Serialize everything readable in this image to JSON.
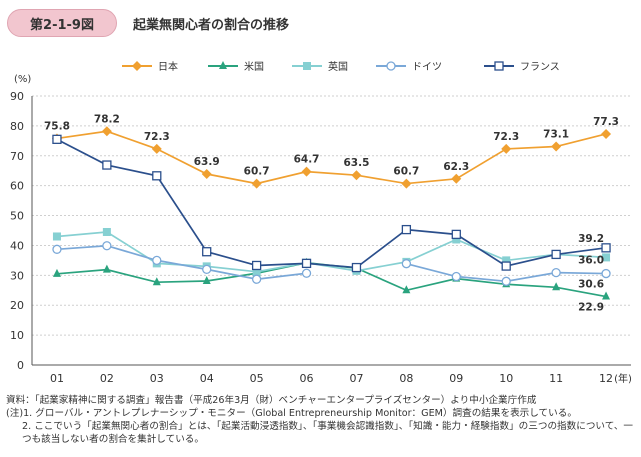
{
  "figure": {
    "label": "第2-1-9図",
    "title": "起業無関心者の割合の推移"
  },
  "chart_data": {
    "type": "line",
    "title": "起業無関心者の割合の推移",
    "ylabel": "(%)",
    "xlabel": "(年)",
    "ylim": [
      0,
      90
    ],
    "yticks": [
      0,
      10,
      20,
      30,
      40,
      50,
      60,
      70,
      80,
      90
    ],
    "categories": [
      "01",
      "02",
      "03",
      "04",
      "05",
      "06",
      "07",
      "08",
      "09",
      "10",
      "11",
      "12"
    ],
    "grid": true,
    "legend": "top",
    "series": [
      {
        "name": "日本",
        "color": "#f0a030",
        "marker": "diamond",
        "values": [
          75.8,
          78.2,
          72.3,
          63.9,
          60.7,
          64.7,
          63.5,
          60.7,
          62.3,
          72.3,
          73.1,
          77.3
        ],
        "labels": [
          "75.8",
          "78.2",
          "72.3",
          "63.9",
          "60.7",
          "64.7",
          "63.5",
          "60.7",
          "62.3",
          "72.3",
          "73.1",
          "77.3"
        ]
      },
      {
        "name": "米国",
        "color": "#2aa37e",
        "marker": "triangle",
        "values": [
          30.5,
          31.9,
          27.7,
          28.1,
          30.7,
          34.2,
          32.4,
          25.0,
          28.9,
          27.0,
          26.0,
          22.9
        ],
        "labels": [
          "",
          "",
          "",
          "",
          "",
          "",
          "",
          "",
          "",
          "",
          "",
          "22.9"
        ]
      },
      {
        "name": "英国",
        "color": "#86d0d2",
        "marker": "square",
        "values": [
          43.0,
          44.5,
          34.0,
          33.0,
          31.2,
          34.2,
          31.5,
          34.5,
          42.0,
          35.0,
          37.0,
          36.0
        ],
        "labels": [
          "",
          "",
          "",
          "",
          "",
          "",
          "",
          "",
          "",
          "",
          "",
          "36.0"
        ]
      },
      {
        "name": "ドイツ",
        "color": "#7aa8d8",
        "marker": "circle",
        "values": [
          38.7,
          39.9,
          35.0,
          32.0,
          28.7,
          30.7,
          null,
          33.9,
          29.6,
          28.0,
          30.9,
          30.6
        ],
        "labels": [
          "",
          "",
          "",
          "",
          "",
          "",
          "",
          "",
          "",
          "",
          "",
          "30.6"
        ]
      },
      {
        "name": "フランス",
        "color": "#2b4f8c",
        "marker": "open-square",
        "values": [
          75.5,
          66.9,
          63.3,
          37.9,
          33.3,
          34.0,
          32.6,
          45.3,
          43.7,
          33.1,
          37.0,
          39.2
        ],
        "labels": [
          "",
          "",
          "",
          "",
          "",
          "",
          "",
          "",
          "",
          "",
          "",
          "39.2"
        ]
      }
    ]
  },
  "notes": {
    "source": "資料：「起業家精神に関する調査」報告書（平成26年3月（財）ベンチャーエンタープライズセンター）より中小企業庁作成",
    "note1": "(注)1. グローバル・アントレプレナーシップ・モニター（Global Entrepreneurship Monitor：GEM）調査の結果を表示している。",
    "note2": "2. ここでいう「起業無関心者の割合」とは、「起業活動浸透指数」、「事業機会認識指数」、「知識・能力・経験指数」の三つの指数について、一つも該当しない者の割合を集計している。"
  }
}
